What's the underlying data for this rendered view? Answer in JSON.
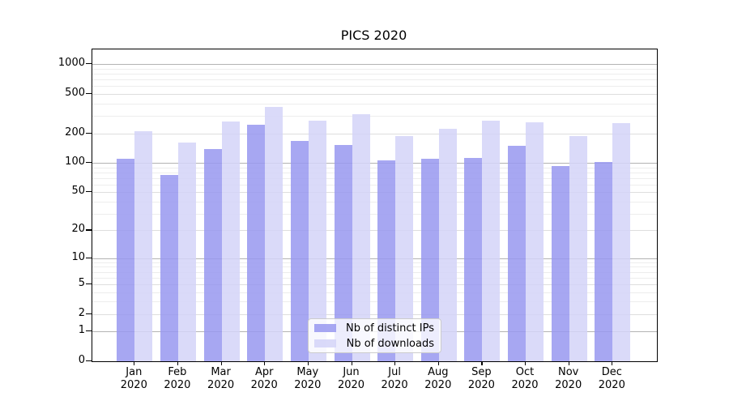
{
  "chart_data": {
    "type": "bar",
    "title": "PICS 2020",
    "year": "2020",
    "categories": [
      "Jan",
      "Feb",
      "Mar",
      "Apr",
      "May",
      "Jun",
      "Jul",
      "Aug",
      "Sep",
      "Oct",
      "Nov",
      "Dec"
    ],
    "series": [
      {
        "name": "Nb of distinct IPs",
        "key": "distinct-ips",
        "color": "#9898f0",
        "values": [
          110,
          75,
          138,
          243,
          166,
          151,
          107,
          110,
          112,
          148,
          93,
          102
        ]
      },
      {
        "name": "Nb of downloads",
        "key": "downloads",
        "color": "#d4d4f8",
        "values": [
          210,
          160,
          264,
          368,
          268,
          312,
          188,
          221,
          268,
          259,
          188,
          255
        ]
      }
    ],
    "y_axis": {
      "scale": "log10(value+1)",
      "labeled_ticks": [
        0,
        1,
        2,
        5,
        10,
        20,
        50,
        100,
        200,
        500,
        1000
      ],
      "major_ticks": [
        1,
        10,
        100,
        1000
      ],
      "minor_ticks": [
        3,
        4,
        6,
        7,
        8,
        9,
        30,
        40,
        60,
        70,
        80,
        90,
        300,
        400,
        600,
        700,
        800,
        900
      ],
      "ylim": [
        0,
        1400
      ]
    },
    "legend_position": "lower center",
    "grid": true
  },
  "colors": {
    "grid_major": "#b3b3b3",
    "grid_mid": "#dedede",
    "grid_minor": "#ededed",
    "axis": "#000000",
    "background": "#ffffff"
  }
}
